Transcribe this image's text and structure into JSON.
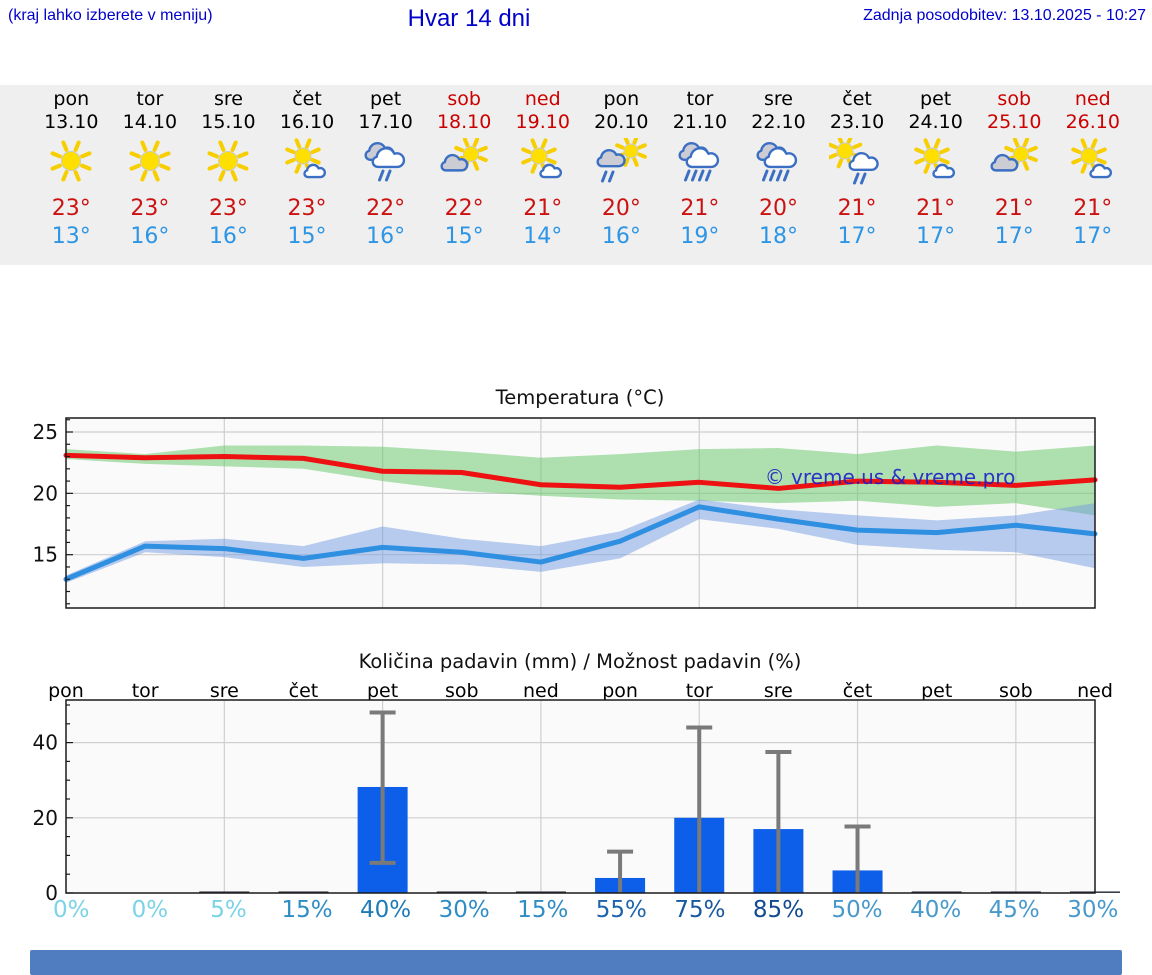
{
  "header": {
    "menu_hint": "(kraj lahko izberete v meniju)",
    "title": "Hvar 14 dni",
    "last_update": "Zadnja posodobitev: 13.10.2025 - 10:27",
    "text_color": "#0000cc"
  },
  "strip": {
    "background": "#efefef",
    "weekend_color": "#cc0000",
    "tmax_color": "#cc1111",
    "tmin_color": "#2d95e5",
    "days": [
      {
        "name": "pon",
        "date": "13.10",
        "weekend": false,
        "icon": "sun",
        "tmax": "23°",
        "tmin": "13°"
      },
      {
        "name": "tor",
        "date": "14.10",
        "weekend": false,
        "icon": "sun",
        "tmax": "23°",
        "tmin": "16°"
      },
      {
        "name": "sre",
        "date": "15.10",
        "weekend": false,
        "icon": "sun",
        "tmax": "23°",
        "tmin": "16°"
      },
      {
        "name": "čet",
        "date": "16.10",
        "weekend": false,
        "icon": "sun-small-cloud",
        "tmax": "23°",
        "tmin": "15°"
      },
      {
        "name": "pet",
        "date": "17.10",
        "weekend": false,
        "icon": "clouds-rain-2",
        "tmax": "22°",
        "tmin": "16°"
      },
      {
        "name": "sob",
        "date": "18.10",
        "weekend": true,
        "icon": "sun-gray-cloud",
        "tmax": "22°",
        "tmin": "15°"
      },
      {
        "name": "ned",
        "date": "19.10",
        "weekend": true,
        "icon": "sun-small-cloud",
        "tmax": "21°",
        "tmin": "14°"
      },
      {
        "name": "pon",
        "date": "20.10",
        "weekend": false,
        "icon": "sun-gray-cloud-rain-2",
        "tmax": "20°",
        "tmin": "16°"
      },
      {
        "name": "tor",
        "date": "21.10",
        "weekend": false,
        "icon": "clouds-rain-4",
        "tmax": "21°",
        "tmin": "19°"
      },
      {
        "name": "sre",
        "date": "22.10",
        "weekend": false,
        "icon": "clouds-rain-4",
        "tmax": "20°",
        "tmin": "18°"
      },
      {
        "name": "čet",
        "date": "23.10",
        "weekend": false,
        "icon": "sun-cloud-rain-2",
        "tmax": "21°",
        "tmin": "17°"
      },
      {
        "name": "pet",
        "date": "24.10",
        "weekend": false,
        "icon": "sun-small-cloud",
        "tmax": "21°",
        "tmin": "17°"
      },
      {
        "name": "sob",
        "date": "25.10",
        "weekend": true,
        "icon": "sun-gray-cloud",
        "tmax": "21°",
        "tmin": "17°"
      },
      {
        "name": "ned",
        "date": "26.10",
        "weekend": true,
        "icon": "sun-small-cloud",
        "tmax": "21°",
        "tmin": "17°"
      }
    ]
  },
  "chart_data": [
    {
      "type": "line",
      "title": "Temperatura (°C)",
      "ylabel": "",
      "yticks": [
        15,
        20,
        25
      ],
      "ylim": [
        10.7,
        26.1
      ],
      "grid": true,
      "legend_position": "none",
      "watermark": "© vreme.us & vreme.pro",
      "watermark_color": "#1b1bc8",
      "x_days": [
        "pon 13.10",
        "tor 14.10",
        "sre 15.10",
        "čet 16.10",
        "pet 17.10",
        "sob 18.10",
        "ned 19.10",
        "pon 20.10",
        "tor 21.10",
        "sre 22.10",
        "čet 23.10",
        "pet 24.10",
        "sob 25.10",
        "ned 26.10"
      ],
      "series": [
        {
          "name": "max-temperature",
          "line_color": "#ee1111",
          "band_color": "rgba(112,200,112,0.55)",
          "values": [
            23.1,
            22.9,
            23.0,
            22.85,
            21.8,
            21.7,
            20.7,
            20.5,
            20.9,
            20.4,
            21.0,
            20.9,
            20.65,
            21.1
          ],
          "band_upper": [
            23.6,
            23.2,
            23.9,
            23.9,
            23.8,
            23.4,
            22.9,
            23.2,
            23.6,
            23.7,
            23.2,
            23.9,
            23.4,
            23.9
          ],
          "band_lower": [
            22.8,
            22.4,
            22.2,
            22.0,
            21.0,
            20.2,
            19.8,
            19.5,
            19.4,
            19.2,
            19.4,
            18.9,
            19.2,
            18.2
          ]
        },
        {
          "name": "min-temperature",
          "line_color": "#2f8fe0",
          "band_color": "rgba(115,155,225,0.5)",
          "values": [
            13.0,
            15.7,
            15.5,
            14.7,
            15.6,
            15.2,
            14.4,
            16.1,
            18.9,
            17.9,
            17.0,
            16.8,
            17.4,
            16.7
          ],
          "band_upper": [
            13.3,
            16.1,
            16.3,
            15.7,
            17.3,
            16.3,
            15.7,
            16.9,
            19.5,
            18.7,
            18.2,
            17.8,
            18.2,
            19.2
          ],
          "band_lower": [
            12.7,
            15.2,
            14.8,
            14.0,
            14.3,
            14.2,
            13.6,
            14.7,
            17.9,
            17.1,
            15.8,
            15.4,
            15.2,
            13.9
          ]
        }
      ]
    },
    {
      "type": "bar",
      "title": "Količina padavin (mm) / Možnost padavin (%)",
      "categories": [
        "pon",
        "tor",
        "sre",
        "čet",
        "pet",
        "sob",
        "ned",
        "pon",
        "tor",
        "sre",
        "čet",
        "pet",
        "sob",
        "ned"
      ],
      "yticks": [
        0,
        20,
        40
      ],
      "ylim": [
        0,
        51.5
      ],
      "grid": true,
      "bar_color": "#0d5ee8",
      "tiny_bar_color": "#3a3f46",
      "whisker_color": "#7a7a7a",
      "values_mm": [
        0,
        0,
        0.4,
        0.4,
        28.2,
        0.4,
        0.4,
        4,
        20,
        17,
        6,
        0.4,
        0.4,
        0.4
      ],
      "whisker_min": [
        0,
        0,
        0,
        0,
        8,
        0,
        0,
        0,
        0,
        0,
        0,
        0,
        0,
        0
      ],
      "whisker_max": [
        0,
        0,
        0,
        0,
        48,
        0,
        0,
        11,
        44,
        37.5,
        17.7,
        0,
        0,
        0
      ],
      "probability": [
        {
          "label": "0%",
          "color": "#7bd3e6"
        },
        {
          "label": "0%",
          "color": "#7bd3e6"
        },
        {
          "label": "5%",
          "color": "#7bd3e6"
        },
        {
          "label": "15%",
          "color": "#2f8dc5"
        },
        {
          "label": "40%",
          "color": "#1e79b7"
        },
        {
          "label": "30%",
          "color": "#2f8dc5"
        },
        {
          "label": "15%",
          "color": "#2f8dc5"
        },
        {
          "label": "55%",
          "color": "#1c64ab"
        },
        {
          "label": "75%",
          "color": "#18589f"
        },
        {
          "label": "85%",
          "color": "#124a90"
        },
        {
          "label": "50%",
          "color": "#4899cb"
        },
        {
          "label": "40%",
          "color": "#4899cb"
        },
        {
          "label": "45%",
          "color": "#4899cb"
        },
        {
          "label": "30%",
          "color": "#4899cb"
        }
      ]
    }
  ],
  "footer": {
    "bar_color": "#4f7dbf"
  }
}
